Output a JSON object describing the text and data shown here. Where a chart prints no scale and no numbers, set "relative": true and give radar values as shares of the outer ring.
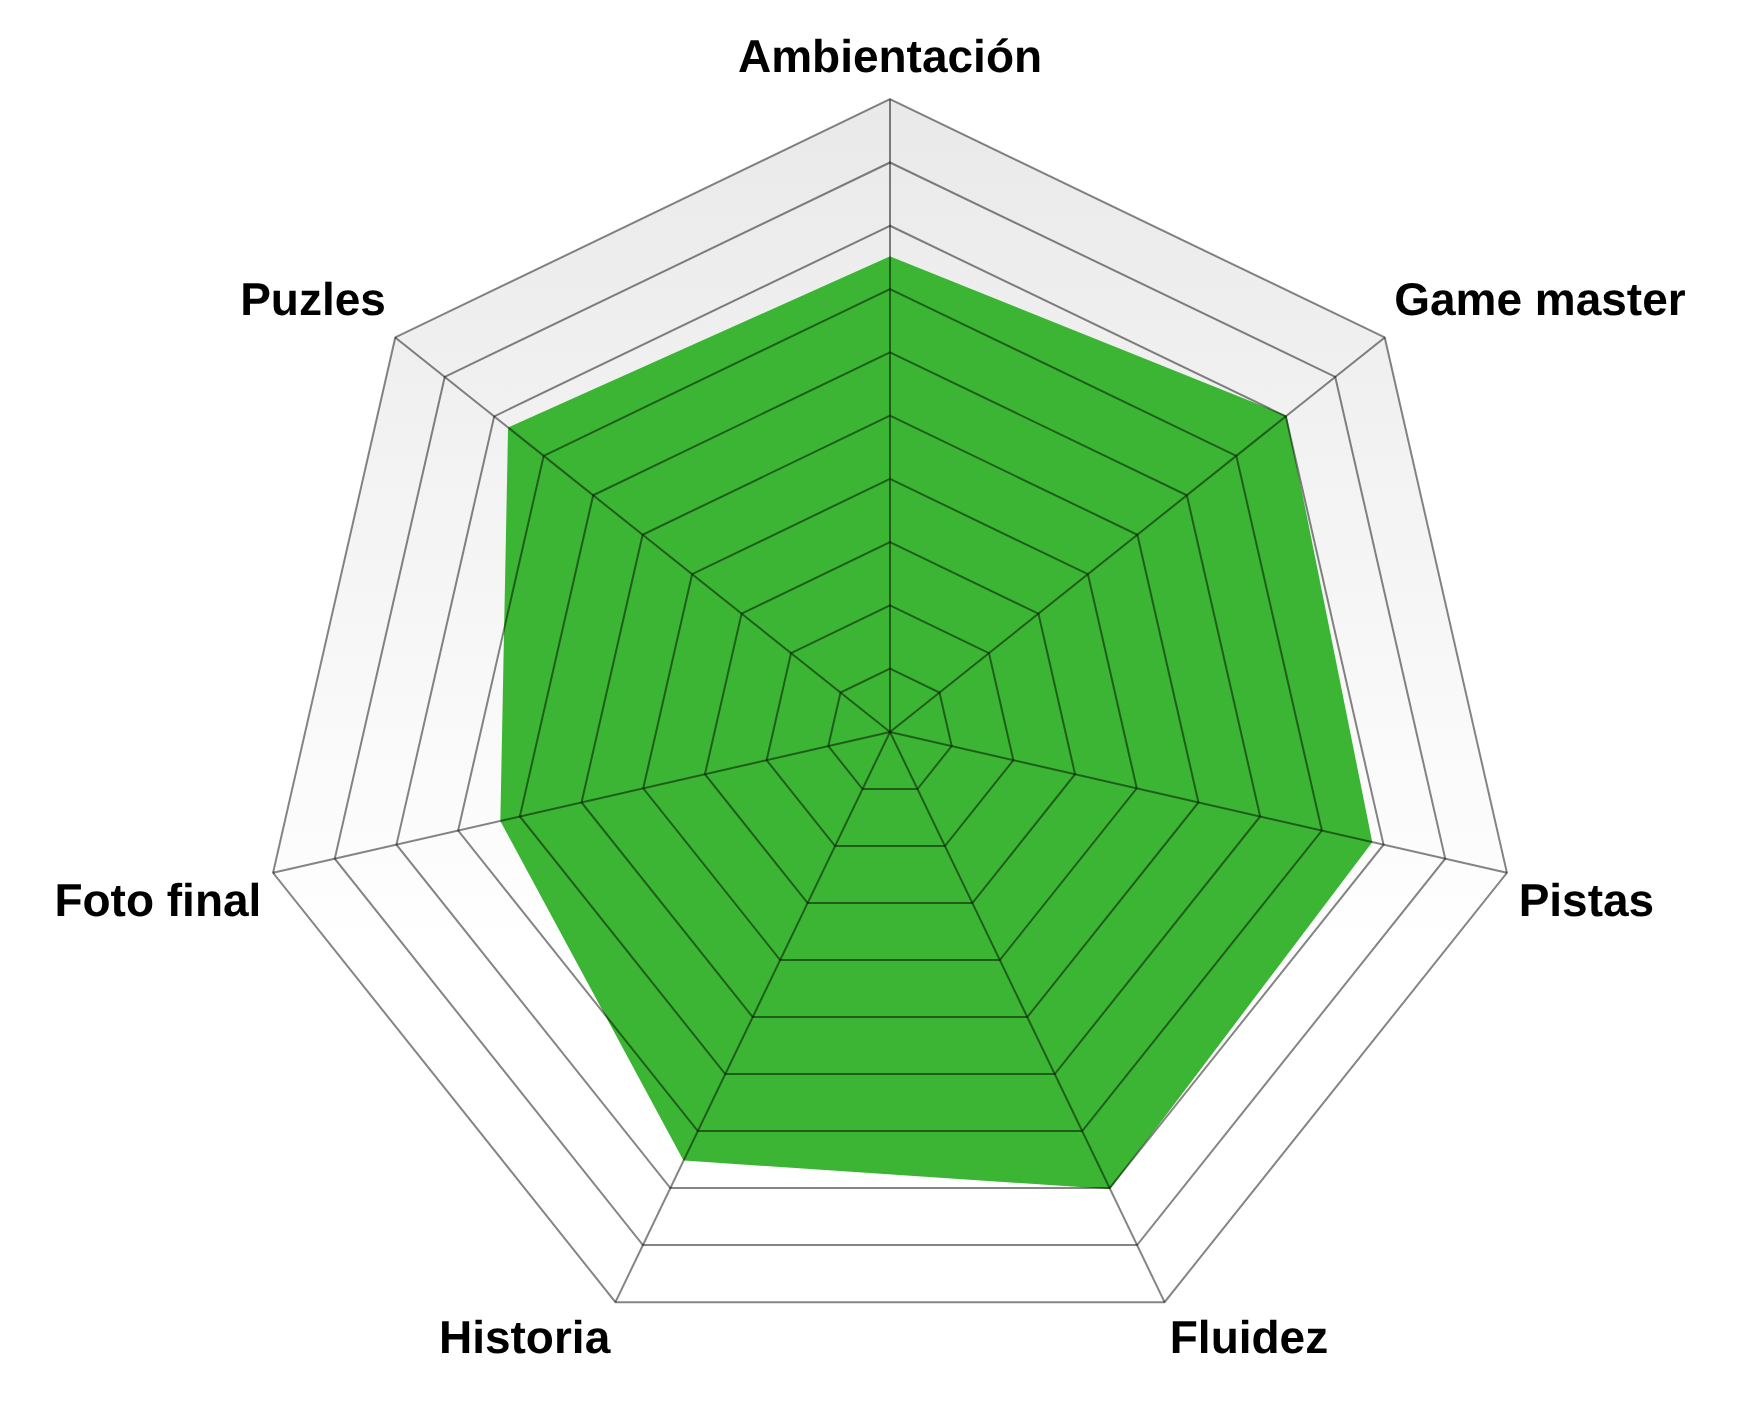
{
  "chart_data": {
    "type": "radar",
    "relative": true,
    "categories": [
      "Ambientación",
      "Game master",
      "Pistas",
      "Fluidez",
      "Historia",
      "Foto final",
      "Puzles"
    ],
    "series": [
      {
        "color": "#3bb533",
        "values": [
          0.75,
          0.8,
          0.78,
          0.8,
          0.75,
          0.63,
          0.77
        ]
      }
    ],
    "grid": true,
    "marker": "none"
  }
}
